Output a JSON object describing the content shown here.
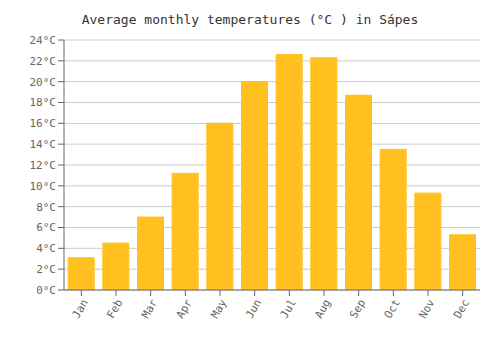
{
  "chart_data": {
    "type": "bar",
    "title": "Average monthly temperatures (°C ) in Sápes",
    "categories": [
      "Jan",
      "Feb",
      "Mar",
      "Apr",
      "May",
      "Jun",
      "Jul",
      "Aug",
      "Sep",
      "Oct",
      "Nov",
      "Dec"
    ],
    "values": [
      3.1,
      4.5,
      7.0,
      11.2,
      16.0,
      20.0,
      22.6,
      22.3,
      18.7,
      13.5,
      9.3,
      5.3
    ],
    "color": "#FFC020",
    "ylim": [
      0,
      24
    ],
    "yticks": [
      {
        "value": 0,
        "label": "0°C"
      },
      {
        "value": 2,
        "label": "2°C"
      },
      {
        "value": 4,
        "label": "4°C"
      },
      {
        "value": 6,
        "label": "6°C"
      },
      {
        "value": 8,
        "label": "8°C"
      },
      {
        "value": 10,
        "label": "10°C"
      },
      {
        "value": 12,
        "label": "12°C"
      },
      {
        "value": 14,
        "label": "14°C"
      },
      {
        "value": 16,
        "label": "16°C"
      },
      {
        "value": 18,
        "label": "18°C"
      },
      {
        "value": 20,
        "label": "20°C"
      },
      {
        "value": 22,
        "label": "22°C"
      },
      {
        "value": 24,
        "label": "24°C"
      }
    ],
    "grid": true
  }
}
